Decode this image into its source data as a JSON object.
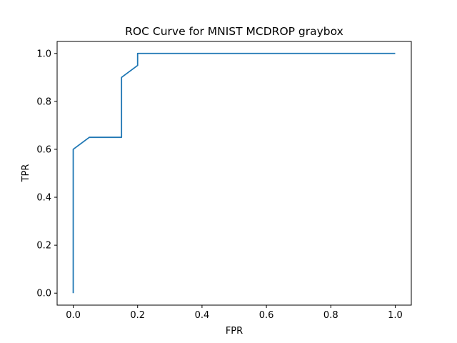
{
  "chart_data": {
    "type": "line",
    "title": "ROC Curve for MNIST MCDROP graybox",
    "xlabel": "FPR",
    "ylabel": "TPR",
    "xlim": [
      -0.05,
      1.05
    ],
    "ylim": [
      -0.05,
      1.05
    ],
    "grid": false,
    "xticks": [
      0.0,
      0.2,
      0.4,
      0.6,
      0.8,
      1.0
    ],
    "xtick_labels": [
      "0.0",
      "0.2",
      "0.4",
      "0.6",
      "0.8",
      "1.0"
    ],
    "yticks": [
      0.0,
      0.2,
      0.4,
      0.6,
      0.8,
      1.0
    ],
    "ytick_labels": [
      "0.0",
      "0.2",
      "0.4",
      "0.6",
      "0.8",
      "1.0"
    ],
    "series": [
      {
        "color": "#1f77b4",
        "x": [
          0.0,
          0.0,
          0.05,
          0.15,
          0.15,
          0.2,
          0.2,
          1.0
        ],
        "y": [
          0.0,
          0.6,
          0.65,
          0.65,
          0.9,
          0.95,
          1.0,
          1.0
        ]
      }
    ]
  }
}
